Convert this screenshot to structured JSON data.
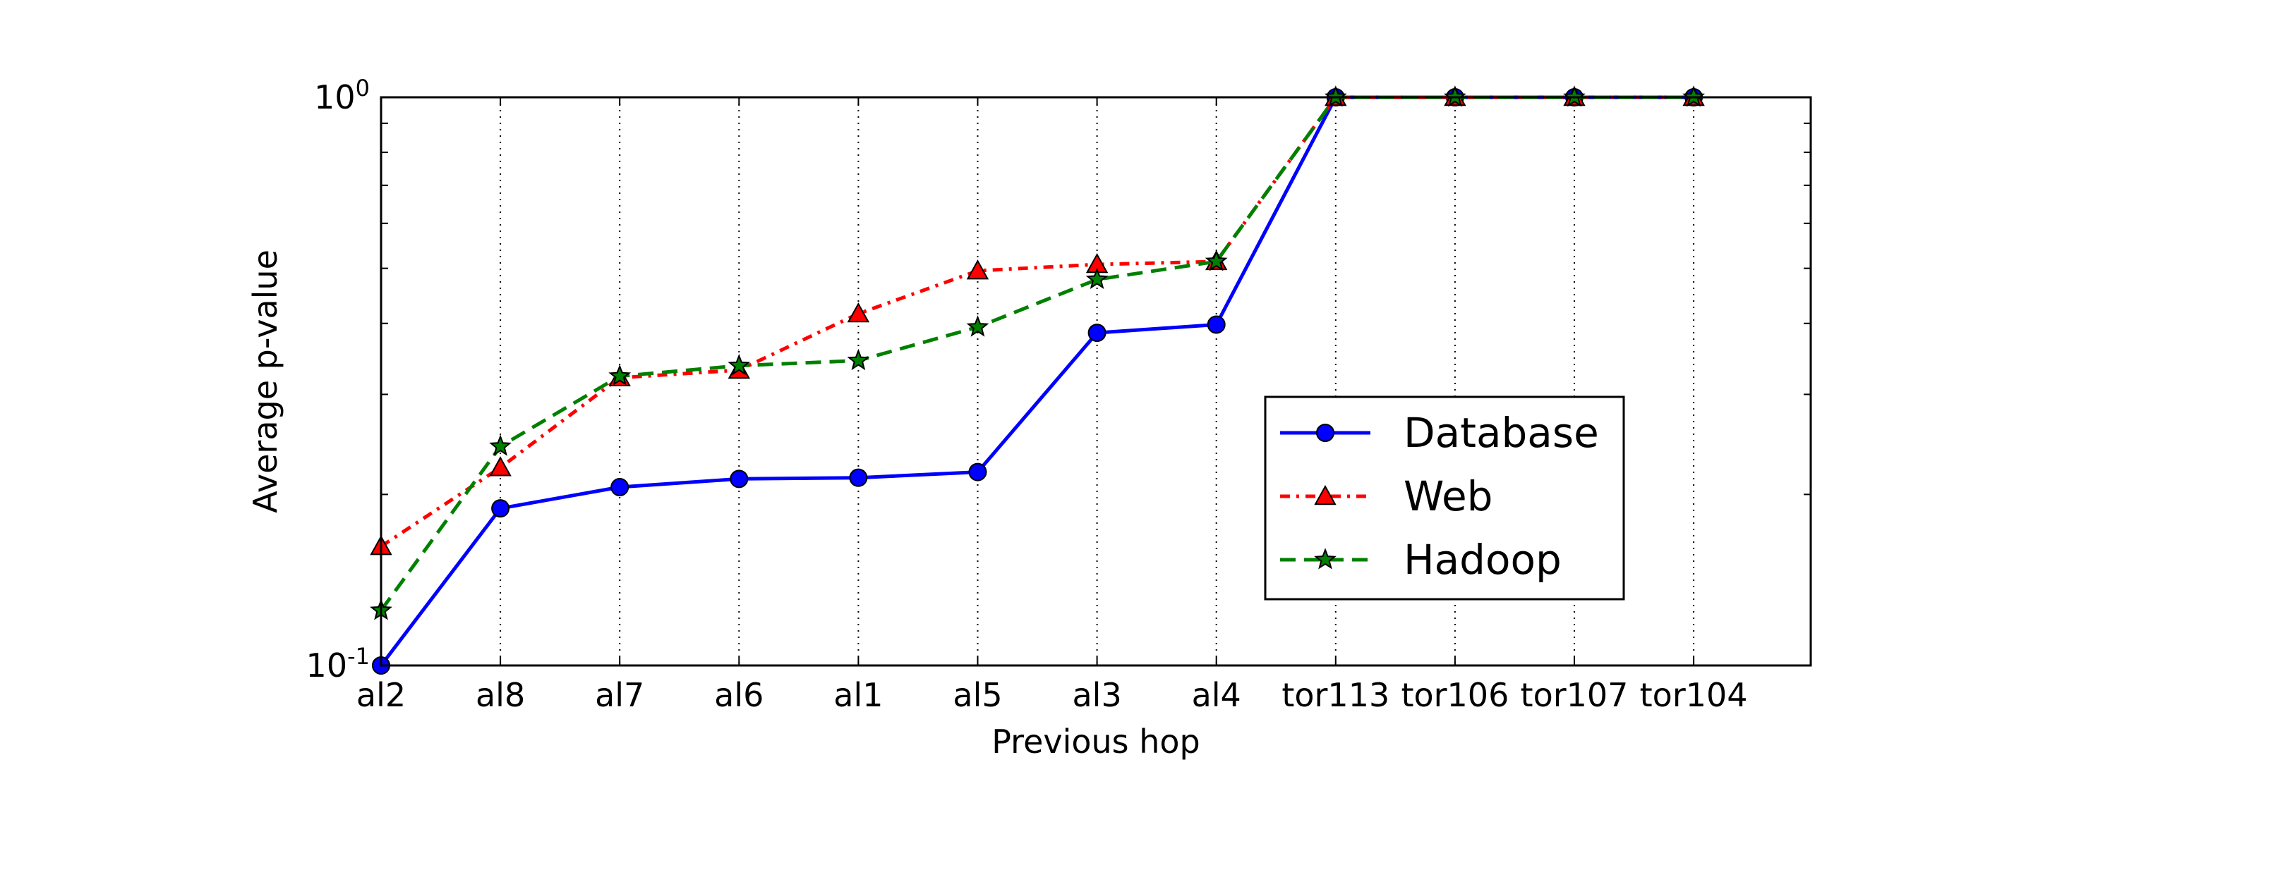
{
  "chart_data": {
    "type": "line",
    "xlabel": "Previous hop",
    "ylabel": "Average p-value",
    "yscale": "log",
    "ylim": [
      0.1,
      1.0
    ],
    "y_tick_labels": [
      {
        "base": "10",
        "exp": "-1",
        "value": 0.1
      },
      {
        "base": "10",
        "exp": "0",
        "value": 1.0
      }
    ],
    "grid": "vertical dotted lines at each category",
    "legend_position": "center-right",
    "categories": [
      "al2",
      "al8",
      "al7",
      "al6",
      "al1",
      "al5",
      "al3",
      "al4",
      "tor113",
      "tor106",
      "tor107",
      "tor104"
    ],
    "series": [
      {
        "name": "Database",
        "color": "#0000ff",
        "line_style": "solid",
        "marker": "circle",
        "values": [
          0.1,
          0.189,
          0.206,
          0.213,
          0.214,
          0.219,
          0.385,
          0.398,
          1.0,
          1.0,
          1.0,
          1.0
        ]
      },
      {
        "name": "Web",
        "color": "#ff0000",
        "line_style": "dash-dot",
        "marker": "triangle",
        "values": [
          0.162,
          0.223,
          0.321,
          0.331,
          0.416,
          0.495,
          0.508,
          0.514,
          1.0,
          1.0,
          1.0,
          1.0
        ]
      },
      {
        "name": "Hadoop",
        "color": "#008000",
        "line_style": "dashed",
        "marker": "star",
        "values": [
          0.125,
          0.243,
          0.323,
          0.337,
          0.344,
          0.394,
          0.478,
          0.514,
          1.0,
          1.0,
          1.0,
          1.0
        ]
      }
    ]
  }
}
